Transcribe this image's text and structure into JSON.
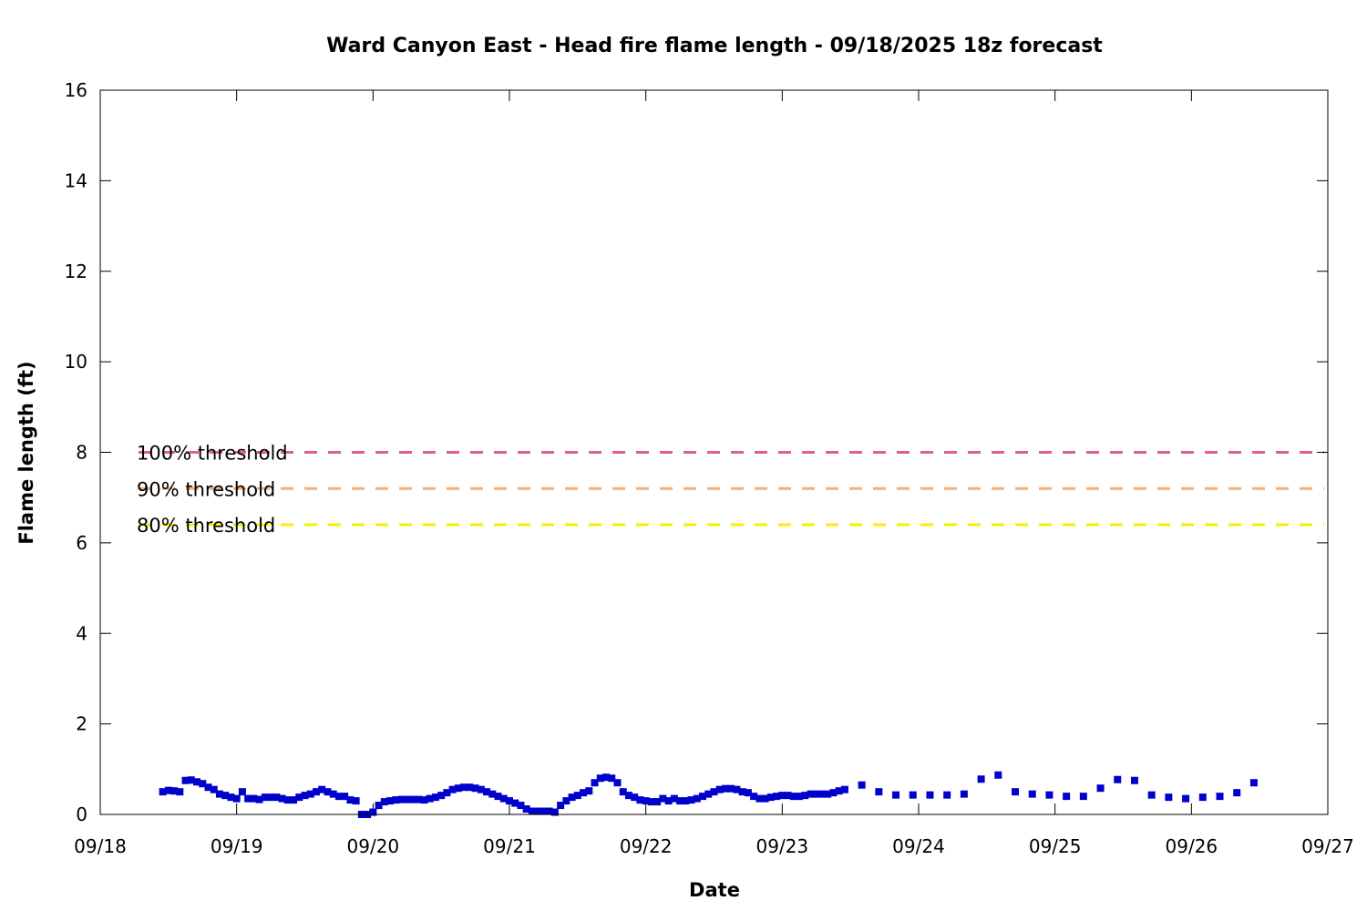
{
  "chart_data": {
    "type": "scatter",
    "title": "Ward Canyon East - Head fire flame length - 09/18/2025 18z forecast",
    "xlabel": "Date",
    "ylabel": "Flame length (ft)",
    "x_ticks": [
      "09/18",
      "09/19",
      "09/20",
      "09/21",
      "09/22",
      "09/23",
      "09/24",
      "09/25",
      "09/26",
      "09/27"
    ],
    "y_ticks": [
      "0",
      "2",
      "4",
      "6",
      "8",
      "10",
      "12",
      "14",
      "16"
    ],
    "xlim": [
      "09/18 00z",
      "09/27 00z"
    ],
    "ylim": [
      0,
      16
    ],
    "grid": false,
    "colors": {
      "points": "#0000cc",
      "threshold_100": "#e0607e",
      "threshold_90": "#f4b07a",
      "threshold_80": "#f5f000"
    },
    "thresholds": [
      {
        "label": "100% threshold",
        "value": 8.0,
        "color": "#e0607e"
      },
      {
        "label": "90% threshold",
        "value": 7.2,
        "color": "#f4b07a"
      },
      {
        "label": "80% threshold",
        "value": 6.4,
        "color": "#f5f000"
      }
    ],
    "series": [
      {
        "points": [
          [
            "09/18 11z",
            0.5
          ],
          [
            "09/18 12z",
            0.53
          ],
          [
            "09/18 13z",
            0.52
          ],
          [
            "09/18 14z",
            0.5
          ],
          [
            "09/18 15z",
            0.75
          ],
          [
            "09/18 16z",
            0.76
          ],
          [
            "09/18 17z",
            0.72
          ],
          [
            "09/18 18z",
            0.68
          ],
          [
            "09/18 19z",
            0.6
          ],
          [
            "09/18 20z",
            0.55
          ],
          [
            "09/18 21z",
            0.45
          ],
          [
            "09/18 22z",
            0.42
          ],
          [
            "09/18 23z",
            0.38
          ],
          [
            "09/19 00z",
            0.35
          ],
          [
            "09/19 01z",
            0.5
          ],
          [
            "09/19 02z",
            0.35
          ],
          [
            "09/19 03z",
            0.35
          ],
          [
            "09/19 04z",
            0.33
          ],
          [
            "09/19 05z",
            0.38
          ],
          [
            "09/19 06z",
            0.38
          ],
          [
            "09/19 07z",
            0.38
          ],
          [
            "09/19 08z",
            0.35
          ],
          [
            "09/19 09z",
            0.32
          ],
          [
            "09/19 10z",
            0.32
          ],
          [
            "09/19 11z",
            0.38
          ],
          [
            "09/19 12z",
            0.42
          ],
          [
            "09/19 13z",
            0.45
          ],
          [
            "09/19 14z",
            0.5
          ],
          [
            "09/19 15z",
            0.55
          ],
          [
            "09/19 16z",
            0.5
          ],
          [
            "09/19 17z",
            0.45
          ],
          [
            "09/19 18z",
            0.4
          ],
          [
            "09/19 19z",
            0.4
          ],
          [
            "09/19 20z",
            0.32
          ],
          [
            "09/19 21z",
            0.3
          ],
          [
            "09/19 22z",
            0.0
          ],
          [
            "09/19 23z",
            0.0
          ],
          [
            "09/20 00z",
            0.05
          ],
          [
            "09/20 01z",
            0.2
          ],
          [
            "09/20 02z",
            0.28
          ],
          [
            "09/20 03z",
            0.3
          ],
          [
            "09/20 04z",
            0.32
          ],
          [
            "09/20 05z",
            0.33
          ],
          [
            "09/20 06z",
            0.33
          ],
          [
            "09/20 07z",
            0.33
          ],
          [
            "09/20 08z",
            0.33
          ],
          [
            "09/20 09z",
            0.32
          ],
          [
            "09/20 10z",
            0.35
          ],
          [
            "09/20 11z",
            0.38
          ],
          [
            "09/20 12z",
            0.42
          ],
          [
            "09/20 13z",
            0.48
          ],
          [
            "09/20 14z",
            0.55
          ],
          [
            "09/20 15z",
            0.58
          ],
          [
            "09/20 16z",
            0.6
          ],
          [
            "09/20 17z",
            0.6
          ],
          [
            "09/20 18z",
            0.58
          ],
          [
            "09/20 19z",
            0.55
          ],
          [
            "09/20 20z",
            0.5
          ],
          [
            "09/20 21z",
            0.45
          ],
          [
            "09/20 22z",
            0.4
          ],
          [
            "09/20 23z",
            0.35
          ],
          [
            "09/21 00z",
            0.3
          ],
          [
            "09/21 01z",
            0.25
          ],
          [
            "09/21 02z",
            0.2
          ],
          [
            "09/21 03z",
            0.12
          ],
          [
            "09/21 04z",
            0.07
          ],
          [
            "09/21 05z",
            0.07
          ],
          [
            "09/21 06z",
            0.07
          ],
          [
            "09/21 07z",
            0.07
          ],
          [
            "09/21 08z",
            0.05
          ],
          [
            "09/21 09z",
            0.2
          ],
          [
            "09/21 10z",
            0.3
          ],
          [
            "09/21 11z",
            0.38
          ],
          [
            "09/21 12z",
            0.42
          ],
          [
            "09/21 13z",
            0.48
          ],
          [
            "09/21 14z",
            0.52
          ],
          [
            "09/21 15z",
            0.7
          ],
          [
            "09/21 16z",
            0.8
          ],
          [
            "09/21 17z",
            0.82
          ],
          [
            "09/21 18z",
            0.8
          ],
          [
            "09/21 19z",
            0.7
          ],
          [
            "09/21 20z",
            0.5
          ],
          [
            "09/21 21z",
            0.42
          ],
          [
            "09/21 22z",
            0.38
          ],
          [
            "09/21 23z",
            0.32
          ],
          [
            "09/22 00z",
            0.3
          ],
          [
            "09/22 01z",
            0.28
          ],
          [
            "09/22 02z",
            0.28
          ],
          [
            "09/22 03z",
            0.35
          ],
          [
            "09/22 04z",
            0.3
          ],
          [
            "09/22 05z",
            0.35
          ],
          [
            "09/22 06z",
            0.3
          ],
          [
            "09/22 07z",
            0.3
          ],
          [
            "09/22 08z",
            0.32
          ],
          [
            "09/22 09z",
            0.35
          ],
          [
            "09/22 10z",
            0.4
          ],
          [
            "09/22 11z",
            0.45
          ],
          [
            "09/22 12z",
            0.5
          ],
          [
            "09/22 13z",
            0.55
          ],
          [
            "09/22 14z",
            0.57
          ],
          [
            "09/22 15z",
            0.57
          ],
          [
            "09/22 16z",
            0.55
          ],
          [
            "09/22 17z",
            0.5
          ],
          [
            "09/22 18z",
            0.48
          ],
          [
            "09/22 19z",
            0.4
          ],
          [
            "09/22 20z",
            0.35
          ],
          [
            "09/22 21z",
            0.35
          ],
          [
            "09/22 22z",
            0.38
          ],
          [
            "09/22 23z",
            0.4
          ],
          [
            "09/23 00z",
            0.42
          ],
          [
            "09/23 01z",
            0.42
          ],
          [
            "09/23 02z",
            0.4
          ],
          [
            "09/23 03z",
            0.4
          ],
          [
            "09/23 04z",
            0.42
          ],
          [
            "09/23 05z",
            0.45
          ],
          [
            "09/23 06z",
            0.45
          ],
          [
            "09/23 07z",
            0.45
          ],
          [
            "09/23 08z",
            0.45
          ],
          [
            "09/23 09z",
            0.48
          ],
          [
            "09/23 10z",
            0.52
          ],
          [
            "09/23 11z",
            0.55
          ],
          [
            "09/23 14z",
            0.65
          ],
          [
            "09/23 17z",
            0.5
          ],
          [
            "09/23 20z",
            0.43
          ],
          [
            "09/23 23z",
            0.43
          ],
          [
            "09/24 02z",
            0.43
          ],
          [
            "09/24 05z",
            0.43
          ],
          [
            "09/24 08z",
            0.45
          ],
          [
            "09/24 11z",
            0.78
          ],
          [
            "09/24 14z",
            0.87
          ],
          [
            "09/24 17z",
            0.5
          ],
          [
            "09/24 20z",
            0.45
          ],
          [
            "09/24 23z",
            0.43
          ],
          [
            "09/25 02z",
            0.4
          ],
          [
            "09/25 05z",
            0.4
          ],
          [
            "09/25 08z",
            0.58
          ],
          [
            "09/25 11z",
            0.77
          ],
          [
            "09/25 14z",
            0.75
          ],
          [
            "09/25 17z",
            0.43
          ],
          [
            "09/25 20z",
            0.38
          ],
          [
            "09/25 23z",
            0.35
          ],
          [
            "09/26 02z",
            0.38
          ],
          [
            "09/26 05z",
            0.4
          ],
          [
            "09/26 08z",
            0.48
          ],
          [
            "09/26 11z",
            0.7
          ]
        ]
      }
    ]
  }
}
